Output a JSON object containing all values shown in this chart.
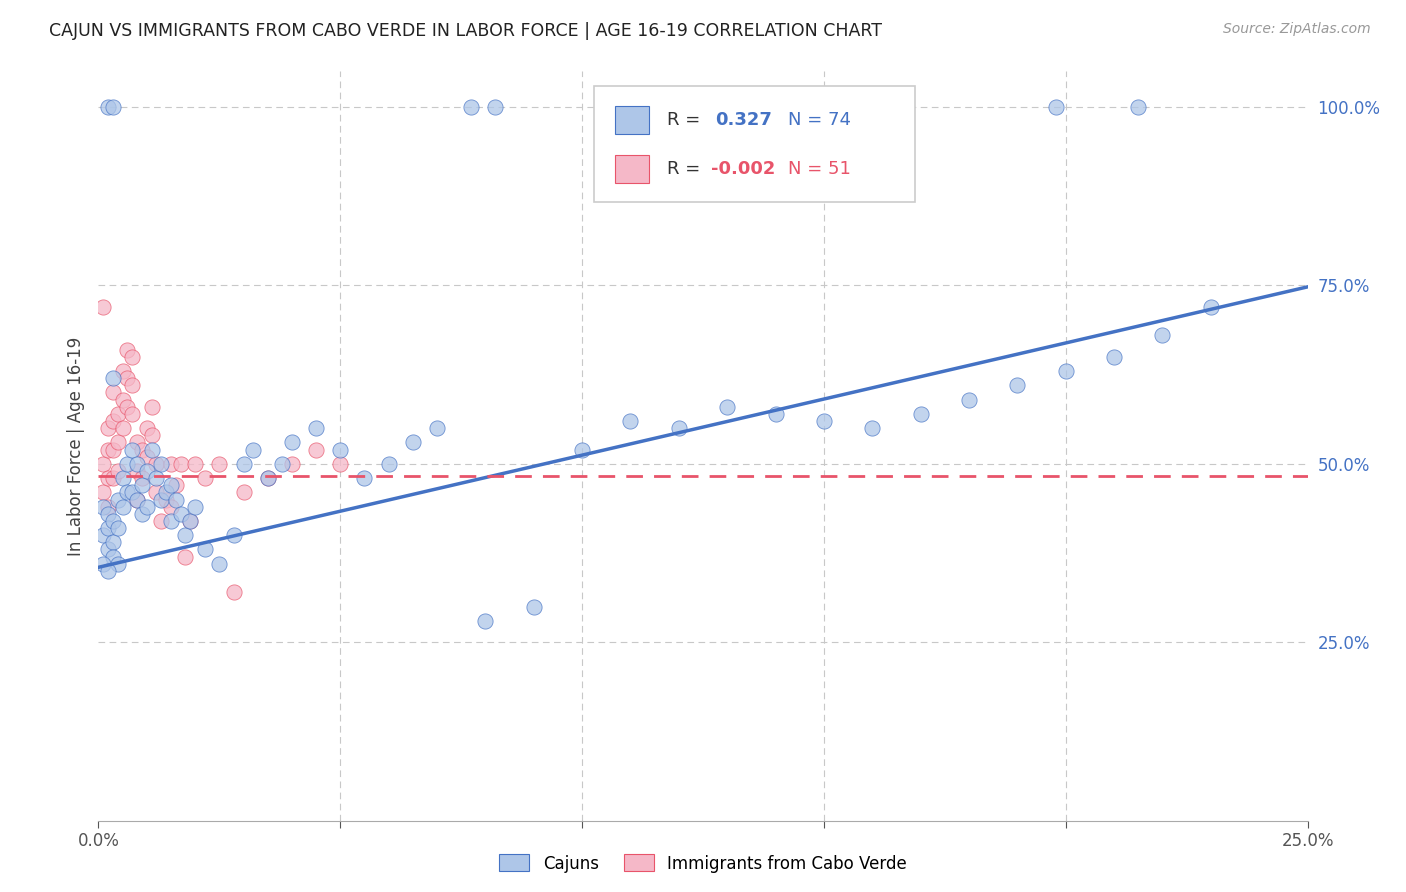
{
  "title": "CAJUN VS IMMIGRANTS FROM CABO VERDE IN LABOR FORCE | AGE 16-19 CORRELATION CHART",
  "source": "Source: ZipAtlas.com",
  "ylabel": "In Labor Force | Age 16-19",
  "xlim": [
    0.0,
    0.25
  ],
  "ylim": [
    0.0,
    1.05
  ],
  "cajun_R": 0.327,
  "cajun_N": 74,
  "cabo_verde_R": -0.002,
  "cabo_verde_N": 51,
  "cajun_color": "#aec6e8",
  "cabo_verde_color": "#f5b8c8",
  "cajun_line_color": "#4472c4",
  "cabo_verde_line_color": "#e8546a",
  "background_color": "#ffffff",
  "grid_color": "#c8c8c8",
  "cajun_line_x0": 0.0,
  "cajun_line_y0": 0.355,
  "cajun_line_x1": 0.25,
  "cajun_line_y1": 0.748,
  "cabo_line_x0": 0.0,
  "cabo_line_y0": 0.483,
  "cabo_line_x1": 0.25,
  "cabo_line_y1": 0.483,
  "cajun_x": [
    0.002,
    0.003,
    0.077,
    0.082,
    0.198,
    0.215,
    0.001,
    0.001,
    0.002,
    0.002,
    0.002,
    0.003,
    0.003,
    0.003,
    0.004,
    0.004,
    0.004,
    0.005,
    0.005,
    0.006,
    0.006,
    0.007,
    0.007,
    0.008,
    0.008,
    0.009,
    0.009,
    0.01,
    0.01,
    0.011,
    0.012,
    0.013,
    0.013,
    0.014,
    0.015,
    0.015,
    0.016,
    0.017,
    0.018,
    0.019,
    0.02,
    0.022,
    0.025,
    0.028,
    0.03,
    0.032,
    0.035,
    0.038,
    0.04,
    0.045,
    0.05,
    0.055,
    0.06,
    0.065,
    0.07,
    0.08,
    0.09,
    0.1,
    0.11,
    0.12,
    0.13,
    0.14,
    0.15,
    0.16,
    0.17,
    0.18,
    0.19,
    0.2,
    0.21,
    0.22,
    0.23,
    0.001,
    0.002,
    0.003
  ],
  "cajun_y": [
    1.0,
    1.0,
    1.0,
    1.0,
    1.0,
    1.0,
    0.44,
    0.4,
    0.43,
    0.41,
    0.38,
    0.42,
    0.39,
    0.37,
    0.45,
    0.41,
    0.36,
    0.48,
    0.44,
    0.5,
    0.46,
    0.52,
    0.46,
    0.5,
    0.45,
    0.47,
    0.43,
    0.49,
    0.44,
    0.52,
    0.48,
    0.5,
    0.45,
    0.46,
    0.47,
    0.42,
    0.45,
    0.43,
    0.4,
    0.42,
    0.44,
    0.38,
    0.36,
    0.4,
    0.5,
    0.52,
    0.48,
    0.5,
    0.53,
    0.55,
    0.52,
    0.48,
    0.5,
    0.53,
    0.55,
    0.28,
    0.3,
    0.52,
    0.56,
    0.55,
    0.58,
    0.57,
    0.56,
    0.55,
    0.57,
    0.59,
    0.61,
    0.63,
    0.65,
    0.68,
    0.72,
    0.36,
    0.35,
    0.62
  ],
  "cabo_x": [
    0.001,
    0.001,
    0.001,
    0.002,
    0.002,
    0.002,
    0.002,
    0.003,
    0.003,
    0.003,
    0.003,
    0.004,
    0.004,
    0.004,
    0.005,
    0.005,
    0.005,
    0.006,
    0.006,
    0.006,
    0.007,
    0.007,
    0.007,
    0.008,
    0.008,
    0.008,
    0.009,
    0.009,
    0.01,
    0.01,
    0.011,
    0.011,
    0.012,
    0.012,
    0.013,
    0.014,
    0.015,
    0.015,
    0.016,
    0.017,
    0.018,
    0.019,
    0.02,
    0.022,
    0.025,
    0.028,
    0.03,
    0.035,
    0.04,
    0.045,
    0.05
  ],
  "cabo_y": [
    0.72,
    0.5,
    0.46,
    0.55,
    0.52,
    0.48,
    0.44,
    0.6,
    0.56,
    0.52,
    0.48,
    0.57,
    0.53,
    0.49,
    0.63,
    0.59,
    0.55,
    0.66,
    0.62,
    0.58,
    0.65,
    0.61,
    0.57,
    0.53,
    0.49,
    0.45,
    0.52,
    0.48,
    0.55,
    0.51,
    0.58,
    0.54,
    0.5,
    0.46,
    0.42,
    0.45,
    0.5,
    0.44,
    0.47,
    0.5,
    0.37,
    0.42,
    0.5,
    0.48,
    0.5,
    0.32,
    0.46,
    0.48,
    0.5,
    0.52,
    0.5
  ]
}
